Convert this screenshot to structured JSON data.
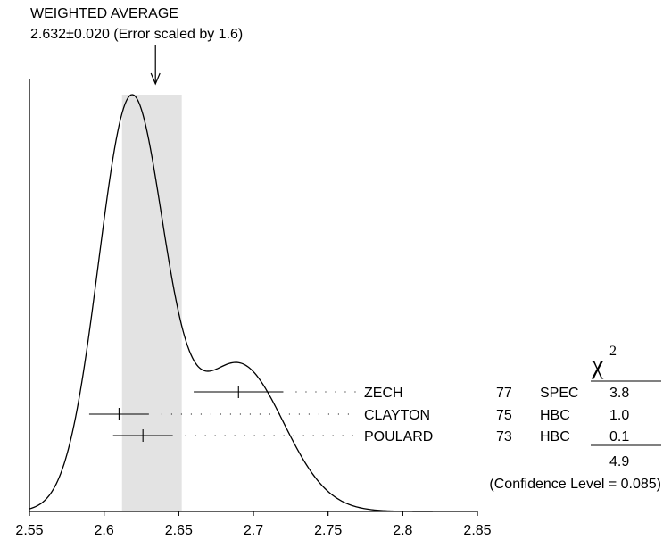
{
  "chart_data": {
    "type": "ideogram",
    "header": {
      "title": "WEIGHTED AVERAGE",
      "subtitle": "2.632±0.020 (Error scaled by 1.6)"
    },
    "weighted_average": {
      "value": 2.632,
      "error": 0.02
    },
    "xlim": [
      2.55,
      2.85
    ],
    "x_ticks": [
      2.55,
      2.6,
      2.65,
      2.7,
      2.75,
      2.8,
      2.85
    ],
    "x_tick_labels": [
      "2.55",
      "2.6",
      "2.65",
      "2.7",
      "2.75",
      "2.8",
      "2.85"
    ],
    "measurements": [
      {
        "name": "ZECH",
        "year": "77",
        "tech": "SPEC",
        "chi2": "3.8",
        "value": 2.69,
        "error": 0.03
      },
      {
        "name": "CLAYTON",
        "year": "75",
        "tech": "HBC",
        "chi2": "1.0",
        "value": 2.61,
        "error": 0.02
      },
      {
        "name": "POULARD",
        "year": "73",
        "tech": "HBC",
        "chi2": "0.1",
        "value": 2.626,
        "error": 0.02
      }
    ],
    "chi2_symbol": "χ",
    "chi2_superscript": "2",
    "chi2_total": "4.9",
    "confidence_level": "(Confidence Level = 0.085)",
    "colors": {
      "band": "#e3e3e3",
      "line": "#000000"
    }
  }
}
